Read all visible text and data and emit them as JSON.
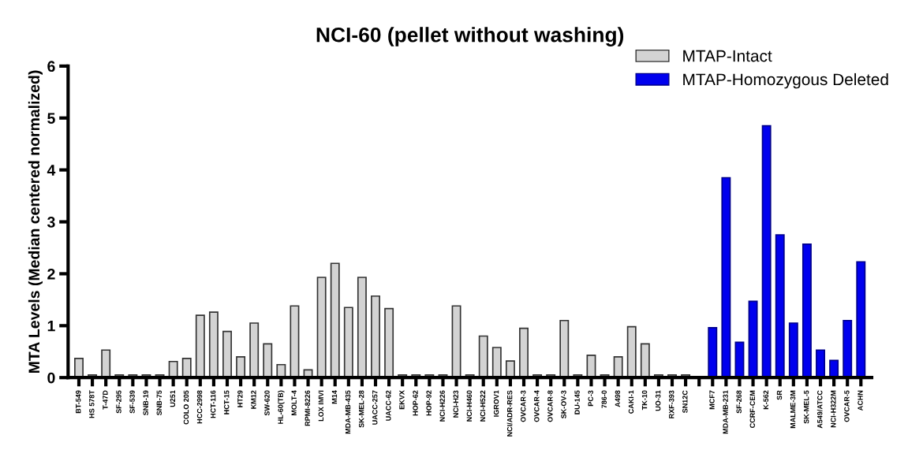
{
  "chart_data": {
    "type": "bar",
    "title": "NCI-60 (pellet without washing)",
    "ylabel": "MTA Levels (Median centered normalized)",
    "categories": [
      "BT-549",
      "HS 578T",
      "T-47D",
      "SF-295",
      "SF-539",
      "SNB-19",
      "SNB-75",
      "U251",
      "COLO 205",
      "HCC-2998",
      "HCT-116",
      "HCT-15",
      "HT29",
      "KM12",
      "SW-620",
      "HL-60(TB)",
      "MOLT-4",
      "RPMI-8226",
      "LOX IMVI",
      "M14",
      "MDA-MB-435",
      "SK-MEL-28",
      "UACC-257",
      "UACC-62",
      "EKVX",
      "HOP-62",
      "HOP-92",
      "NCI-H226",
      "NCI-H23",
      "NCI-H460",
      "NCI-H522",
      "IGROV1",
      "NCI/ADR-RES",
      "OVCAR-3",
      "OVCAR-4",
      "OVCAR-8",
      "SK-OV-3",
      "DU-145",
      "PC-3",
      "786-0",
      "A498",
      "CAKI-1",
      "TK-10",
      "UO-31",
      "RXF-393",
      "SN12C",
      null,
      "MCF7",
      "MDA-MB-231",
      "SF-268",
      "CCRF-CEM",
      "K-562",
      "SR",
      "MALME-3M",
      "SK-MEL-5",
      "A549/ATCC",
      "NCI-H322M",
      "OVCAR-5",
      "ACHN"
    ],
    "series": [
      {
        "name": "MTAP-Intact",
        "color": "#d3d3d3",
        "values": [
          0.37,
          0.05,
          0.53,
          0.05,
          0.05,
          0.05,
          0.05,
          0.31,
          0.37,
          1.2,
          1.26,
          0.89,
          0.4,
          1.05,
          0.65,
          0.25,
          1.38,
          0.15,
          1.93,
          2.2,
          1.35,
          1.93,
          1.57,
          1.33,
          0.05,
          0.05,
          0.05,
          0.05,
          1.38,
          0.05,
          0.8,
          0.58,
          0.32,
          0.95,
          0.05,
          0.05,
          1.1,
          0.05,
          0.43,
          0.05,
          0.4,
          0.98,
          0.65,
          0.05,
          0.05,
          0.05,
          null,
          null,
          null,
          null,
          null,
          null,
          null,
          null,
          null,
          null,
          null,
          null,
          null
        ]
      },
      {
        "name": "MTAP-Homozygous Deleted",
        "color": "#0000ee",
        "values": [
          null,
          null,
          null,
          null,
          null,
          null,
          null,
          null,
          null,
          null,
          null,
          null,
          null,
          null,
          null,
          null,
          null,
          null,
          null,
          null,
          null,
          null,
          null,
          null,
          null,
          null,
          null,
          null,
          null,
          null,
          null,
          null,
          null,
          null,
          null,
          null,
          null,
          null,
          null,
          null,
          null,
          null,
          null,
          null,
          null,
          null,
          null,
          0.96,
          3.85,
          0.68,
          1.47,
          4.85,
          2.75,
          1.05,
          2.57,
          0.53,
          0.33,
          1.1,
          2.23
        ]
      }
    ],
    "ylim": [
      0,
      6
    ],
    "yticks": [
      0,
      1,
      2,
      3,
      4,
      5,
      6
    ],
    "grid": false,
    "legend": "top right"
  }
}
